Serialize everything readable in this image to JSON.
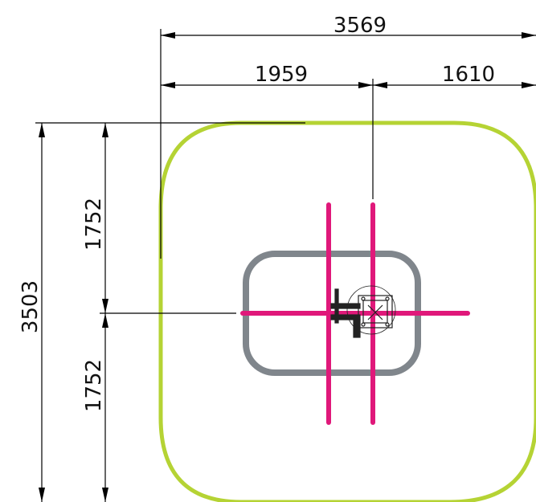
{
  "dimensions": {
    "total_width": "3569",
    "left_width": "1959",
    "right_width": "1610",
    "total_height": "3503",
    "upper_height": "1752",
    "lower_height": "1752"
  },
  "colors": {
    "safety_zone": "#b5d334",
    "frame": "#80868c",
    "cross_bars": "#e0187a",
    "dimension_lines": "#000000",
    "equipment": "#222222"
  }
}
